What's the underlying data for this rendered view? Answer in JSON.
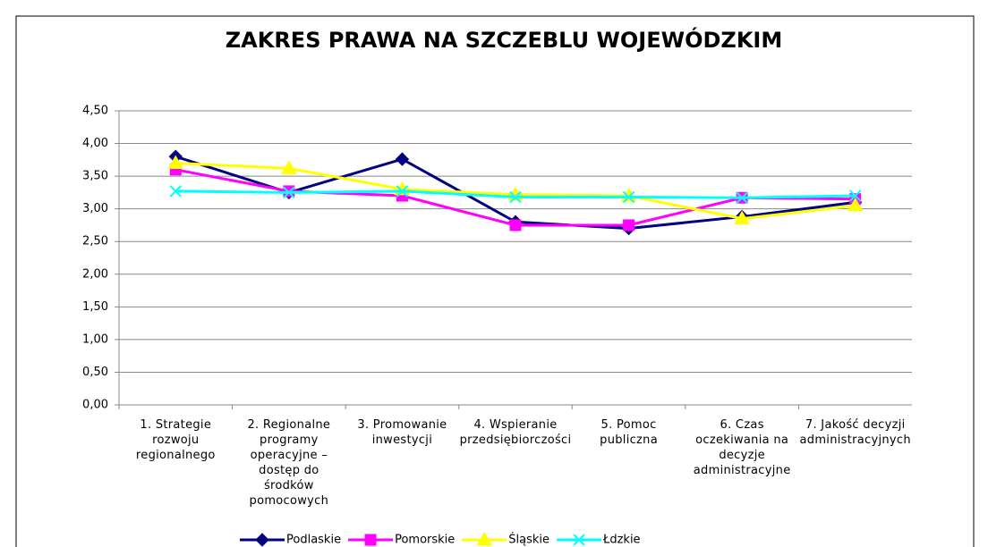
{
  "chart_data": {
    "type": "line",
    "title": "ZAKRES PRAWA NA SZCZEBLU WOJEWÓDZKIM",
    "categories": [
      "1. Strategie rozwoju regionalnego",
      "2. Regionalne programy operacyjne – dostęp do środków pomocowych",
      "3. Promowanie inwestycji",
      "4. Wspieranie przedsiębiorczości",
      "5. Pomoc publiczna",
      "6. Czas oczekiwania na decyzje administracyjne",
      "7. Jakość decyzji administracyjnych"
    ],
    "series": [
      {
        "name": "Podlaskie",
        "color": "#000080",
        "marker": "diamond",
        "values": [
          3.8,
          3.25,
          3.76,
          2.8,
          2.7,
          2.88,
          3.1
        ]
      },
      {
        "name": "Pomorskie",
        "color": "#ff00ff",
        "marker": "square",
        "values": [
          3.6,
          3.27,
          3.2,
          2.75,
          2.75,
          3.17,
          3.15
        ]
      },
      {
        "name": "Śląskie",
        "color": "#ffff00",
        "marker": "triangle",
        "values": [
          3.7,
          3.62,
          3.3,
          3.22,
          3.2,
          2.85,
          3.05
        ]
      },
      {
        "name": "Łdzkie",
        "color": "#00ffff",
        "marker": "x",
        "values": [
          3.27,
          3.25,
          3.27,
          3.18,
          3.18,
          3.17,
          3.2
        ]
      }
    ],
    "ylim": [
      0,
      4.5
    ],
    "yticks": [
      {
        "value": 0,
        "label": "0,00"
      },
      {
        "value": 0.5,
        "label": "0,50"
      },
      {
        "value": 1,
        "label": "1,00"
      },
      {
        "value": 1.5,
        "label": "1,50"
      },
      {
        "value": 2,
        "label": "2,00"
      },
      {
        "value": 2.5,
        "label": "2,50"
      },
      {
        "value": 3,
        "label": "3,00"
      },
      {
        "value": 3.5,
        "label": "3,50"
      },
      {
        "value": 4,
        "label": "4,00"
      },
      {
        "value": 4.5,
        "label": "4,50"
      }
    ],
    "grid": true,
    "legend": "bottom"
  }
}
